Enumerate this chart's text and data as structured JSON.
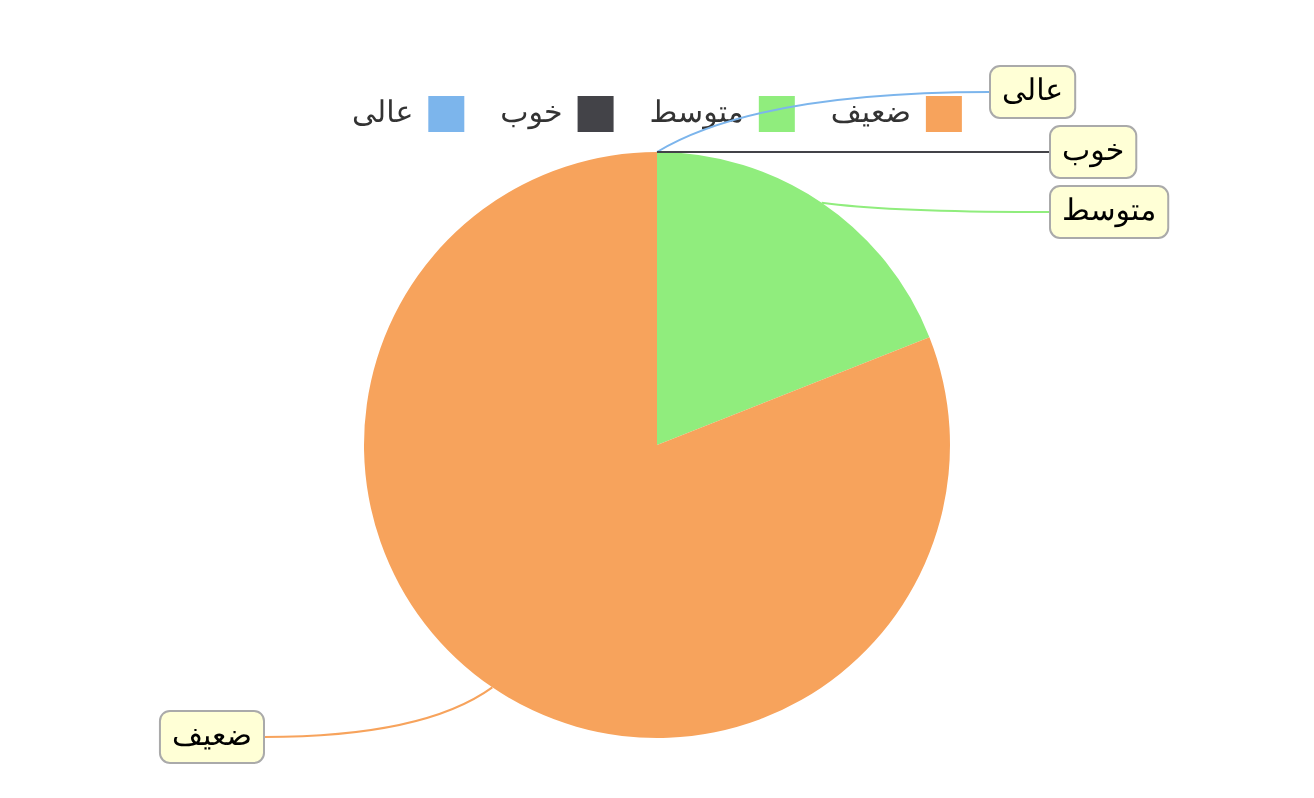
{
  "chart_data": {
    "type": "pie",
    "categories": [
      "عالی",
      "خوب",
      "متوسط",
      "ضعیف"
    ],
    "values": [
      0,
      0,
      19,
      81
    ],
    "colors": [
      "#7cb5ec",
      "#434348",
      "#90ed7d",
      "#f7a35c"
    ],
    "legend": "top"
  }
}
